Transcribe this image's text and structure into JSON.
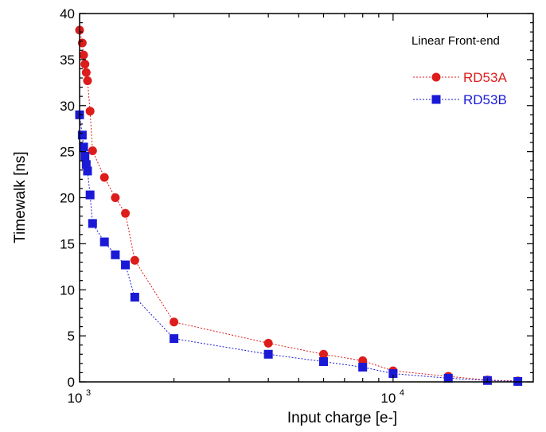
{
  "chart_data": {
    "type": "scatter",
    "title": "",
    "xlabel": "Input charge [e-]",
    "ylabel": "Timewalk [ns]",
    "xscale": "log",
    "xlim": [
      1000,
      28000
    ],
    "ylim": [
      0,
      40
    ],
    "x_tick_labels": [
      {
        "base": "10",
        "exp": "3",
        "value": 1000
      },
      {
        "base": "10",
        "exp": "4",
        "value": 10000
      }
    ],
    "y_tick_labels": [
      "0",
      "5",
      "10",
      "15",
      "20",
      "25",
      "30",
      "35",
      "40"
    ],
    "legend": {
      "title": "Linear Front-end",
      "placement": "top-right"
    },
    "grid": false,
    "series": [
      {
        "name": "RD53A",
        "color": "#dd1c1c",
        "marker": "circle",
        "line": "dotted",
        "x": [
          1000,
          1020,
          1030,
          1040,
          1050,
          1060,
          1080,
          1100,
          1200,
          1300,
          1400,
          1500,
          2000,
          4000,
          6000,
          8000,
          10000,
          15000,
          20000,
          25000
        ],
        "y": [
          38.2,
          36.8,
          35.5,
          34.5,
          33.6,
          32.7,
          29.4,
          25.1,
          22.2,
          20.0,
          18.3,
          13.2,
          6.5,
          4.2,
          3.0,
          2.3,
          1.2,
          0.6,
          0.2,
          0.1
        ]
      },
      {
        "name": "RD53B",
        "color": "#1a1ad6",
        "marker": "square",
        "line": "dotted",
        "x": [
          1000,
          1020,
          1030,
          1040,
          1050,
          1060,
          1080,
          1100,
          1200,
          1300,
          1400,
          1500,
          2000,
          4000,
          6000,
          8000,
          10000,
          15000,
          20000,
          25000
        ],
        "y": [
          29.0,
          26.8,
          25.5,
          24.5,
          23.6,
          22.9,
          20.3,
          17.2,
          15.2,
          13.8,
          12.7,
          9.2,
          4.7,
          3.0,
          2.2,
          1.6,
          0.9,
          0.4,
          0.15,
          0.05
        ]
      }
    ]
  }
}
